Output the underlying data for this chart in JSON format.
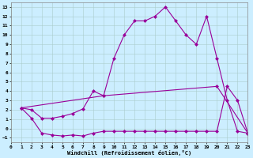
{
  "xlabel": "Windchill (Refroidissement éolien,°C)",
  "bg_color": "#cceeff",
  "line_color": "#990099",
  "grid_color": "#aacccc",
  "xlim": [
    0,
    23
  ],
  "ylim": [
    -1.5,
    13.5
  ],
  "xticks": [
    0,
    1,
    2,
    3,
    4,
    5,
    6,
    7,
    8,
    9,
    10,
    11,
    12,
    13,
    14,
    15,
    16,
    17,
    18,
    19,
    20,
    21,
    22,
    23
  ],
  "yticks": [
    -1,
    0,
    1,
    2,
    3,
    4,
    5,
    6,
    7,
    8,
    9,
    10,
    11,
    12,
    13
  ],
  "curve1_x": [
    1,
    2,
    3,
    4,
    5,
    6,
    7,
    8,
    9,
    10,
    11,
    12,
    13,
    14,
    15,
    16,
    17,
    18,
    19,
    20,
    21,
    22,
    23
  ],
  "curve1_y": [
    2.2,
    2.0,
    1.1,
    1.1,
    1.3,
    1.6,
    2.1,
    4.0,
    3.5,
    7.5,
    10.0,
    11.5,
    11.5,
    12.0,
    13.0,
    11.5,
    10.0,
    9.0,
    12.0,
    7.5,
    3.0,
    -0.3,
    -0.5
  ],
  "curve2_x": [
    1,
    9,
    20,
    23
  ],
  "curve2_y": [
    2.2,
    3.5,
    4.5,
    -0.5
  ],
  "curve3_x": [
    1,
    2,
    3,
    4,
    5,
    6,
    7,
    8,
    9,
    10,
    11,
    12,
    13,
    14,
    15,
    16,
    17,
    18,
    19,
    20,
    21,
    22,
    23
  ],
  "curve3_y": [
    2.2,
    1.1,
    -0.5,
    -0.7,
    -0.8,
    -0.7,
    -0.8,
    -0.5,
    -0.3,
    -0.3,
    -0.3,
    -0.3,
    -0.3,
    -0.3,
    -0.3,
    -0.3,
    -0.3,
    -0.3,
    -0.3,
    -0.3,
    4.5,
    3.0,
    -0.5
  ],
  "marker_size": 2.5,
  "linewidth": 0.8,
  "xlabel_fontsize": 5.0,
  "tick_fontsize": 4.5
}
